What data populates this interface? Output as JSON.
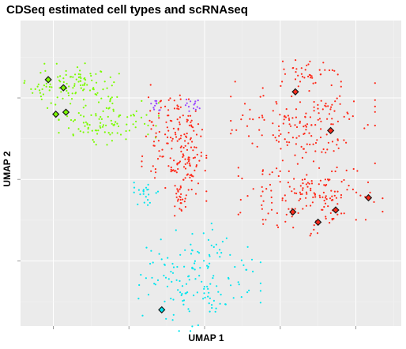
{
  "chart_data": {
    "type": "scatter",
    "title": "CDSeq estimated cell types and scRNAseq",
    "xlabel": "UMAP 1",
    "ylabel": "UMAP 2",
    "xlim": [
      -1.3,
      13.8
    ],
    "ylim": [
      -7.2,
      7.8
    ],
    "x_ticks": [
      0,
      3,
      6,
      9,
      12
    ],
    "y_ticks": [
      -4,
      0,
      4
    ],
    "grid": true,
    "legend": "none",
    "colors": {
      "panel_bg": "#ebebeb",
      "grid_major": "#ffffff",
      "grid_minor": "#f4f4f4",
      "tick": "#999999",
      "diamond_stroke": "#1a1a1a"
    },
    "series": [
      {
        "color": "#7cfc00",
        "clusters": [
          {
            "cx": 0.8,
            "cy": 4.6,
            "sx": 0.9,
            "sy": 0.5,
            "n": 110
          },
          {
            "cx": 2.2,
            "cy": 2.8,
            "sx": 0.9,
            "sy": 0.5,
            "n": 100
          }
        ],
        "diamonds": [
          {
            "x": -0.2,
            "y": 4.9
          },
          {
            "x": 0.4,
            "y": 4.5
          },
          {
            "x": 0.1,
            "y": 3.2
          },
          {
            "x": 0.5,
            "y": 3.3
          }
        ]
      },
      {
        "color": "#ff2a1a",
        "clusters": [
          {
            "cx": 4.5,
            "cy": 2.0,
            "sx": 0.45,
            "sy": 1.2,
            "n": 90
          },
          {
            "cx": 5.3,
            "cy": 1.3,
            "sx": 0.35,
            "sy": 1.2,
            "n": 90
          },
          {
            "cx": 5.1,
            "cy": -0.9,
            "sx": 0.15,
            "sy": 0.4,
            "n": 25
          },
          {
            "cx": 10.2,
            "cy": 5.2,
            "sx": 0.5,
            "sy": 0.3,
            "n": 35
          },
          {
            "cx": 9.9,
            "cy": 2.6,
            "sx": 1.3,
            "sy": 1.0,
            "n": 170
          },
          {
            "cx": 10.2,
            "cy": -1.0,
            "sx": 1.3,
            "sy": 0.8,
            "n": 160
          }
        ],
        "diamonds": [
          {
            "x": 9.6,
            "y": 4.3
          },
          {
            "x": 11.0,
            "y": 2.4
          },
          {
            "x": 12.5,
            "y": -0.9
          },
          {
            "x": 9.5,
            "y": -1.6
          },
          {
            "x": 10.5,
            "y": -2.1
          },
          {
            "x": 11.2,
            "y": -1.5
          }
        ]
      },
      {
        "color": "#9a46ff",
        "clusters": [
          {
            "cx": 4.1,
            "cy": 3.6,
            "sx": 0.1,
            "sy": 0.15,
            "n": 10
          },
          {
            "cx": 5.5,
            "cy": 3.6,
            "sx": 0.25,
            "sy": 0.15,
            "n": 14
          }
        ],
        "diamonds": []
      },
      {
        "color": "#00e5ee",
        "clusters": [
          {
            "cx": 3.6,
            "cy": -0.6,
            "sx": 0.25,
            "sy": 0.3,
            "n": 22
          },
          {
            "cx": 5.8,
            "cy": -4.8,
            "sx": 1.1,
            "sy": 1.2,
            "n": 150
          }
        ],
        "diamonds": [
          {
            "x": 4.3,
            "y": -6.4
          }
        ]
      }
    ]
  }
}
